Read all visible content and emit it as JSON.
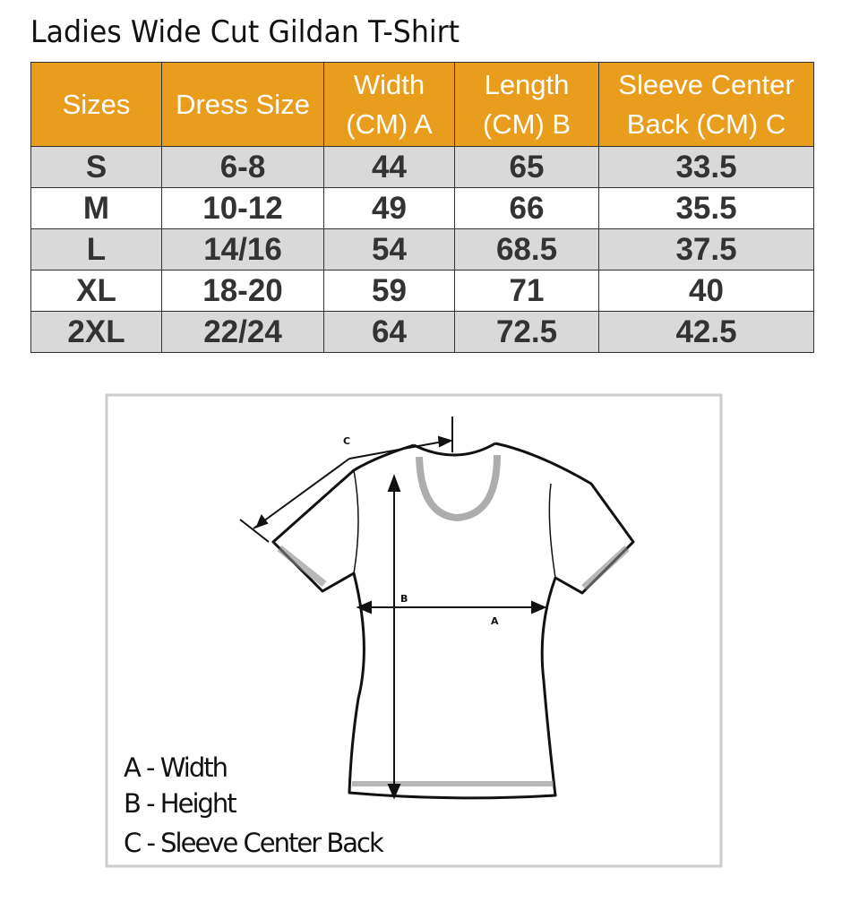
{
  "title": "Ladies Wide Cut Gildan T-Shirt",
  "table": {
    "headers": [
      "Sizes",
      "Dress Size",
      "Width (CM) A",
      "Length (CM) B",
      "Sleeve Center Back (CM) C"
    ],
    "header_lines": [
      [
        "Sizes"
      ],
      [
        "Dress Size"
      ],
      [
        "Width",
        "(CM) A"
      ],
      [
        "Length",
        "(CM) B"
      ],
      [
        "Sleeve Center",
        "Back (CM) C"
      ]
    ],
    "rows": [
      [
        "S",
        "6-8",
        "44",
        "65",
        "33.5"
      ],
      [
        "M",
        "10-12",
        "49",
        "66",
        "35.5"
      ],
      [
        "L",
        "14/16",
        "54",
        "68.5",
        "37.5"
      ],
      [
        "XL",
        "18-20",
        "59",
        "71",
        "40"
      ],
      [
        "2XL",
        "22/24",
        "64",
        "72.5",
        "42.5"
      ]
    ],
    "header_color": "#e99d1c",
    "stripe_color": "#d9d9d9"
  },
  "diagram": {
    "markers": {
      "a": "A",
      "b": "B",
      "c": "C"
    },
    "legend": [
      "A - Width",
      "B - Height",
      "C - Sleeve Center Back"
    ]
  }
}
